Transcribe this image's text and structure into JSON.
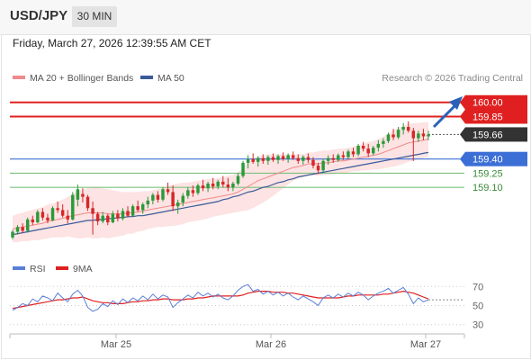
{
  "header": {
    "symbol": "USD/JPY",
    "timeframe": "30 MIN"
  },
  "timestamp": "Friday, March 27, 2026 12:39:55 AM CET",
  "legend": {
    "ma20_label": "MA 20 + Bollinger Bands",
    "ma50_label": "MA 50",
    "copyright": "Research © 2026 Trading Central"
  },
  "rsi_legend": {
    "rsi_label": "RSI",
    "ma_label": "9MA"
  },
  "colors": {
    "up": "#2a9a3a",
    "down": "#d62728",
    "ma20": "#f08a8a",
    "ma50": "#3a5a9a",
    "band_fill": "#fde3e3",
    "resistance": "#e02020",
    "pivot": "#3c6fd6",
    "support": "#7ec07e",
    "current": "#333333",
    "rsi": "#5b7fd6",
    "rsi_ma": "#e02020",
    "arrow": "#2b62b8"
  },
  "chart_data": {
    "type": "candlestick",
    "ylim": [
      158.53,
      160.15
    ],
    "x_ticks": [
      "Mar 25",
      "Mar 26",
      "Mar 27"
    ],
    "current_price": 159.66,
    "levels": [
      {
        "name": "resistance-2",
        "value": 160.0,
        "label": "160.00",
        "kind": "resistance"
      },
      {
        "name": "resistance-1",
        "value": 159.85,
        "label": "159.85",
        "kind": "resistance"
      },
      {
        "name": "pivot",
        "value": 159.4,
        "label": "159.40",
        "kind": "pivot"
      },
      {
        "name": "support-1",
        "value": 159.25,
        "label": "159.25",
        "kind": "support"
      },
      {
        "name": "support-2",
        "value": 159.1,
        "label": "159.10",
        "kind": "support"
      }
    ],
    "candles": [
      [
        158.57,
        158.65,
        158.55,
        158.63
      ],
      [
        158.63,
        158.7,
        158.6,
        158.68
      ],
      [
        158.68,
        158.72,
        158.62,
        158.64
      ],
      [
        158.64,
        158.78,
        158.62,
        158.76
      ],
      [
        158.76,
        158.8,
        158.7,
        158.73
      ],
      [
        158.73,
        158.86,
        158.72,
        158.84
      ],
      [
        158.84,
        158.88,
        158.75,
        158.78
      ],
      [
        158.78,
        158.82,
        158.72,
        158.75
      ],
      [
        158.75,
        158.9,
        158.74,
        158.88
      ],
      [
        158.88,
        158.95,
        158.83,
        158.86
      ],
      [
        158.86,
        158.92,
        158.78,
        158.8
      ],
      [
        158.8,
        158.86,
        158.72,
        158.76
      ],
      [
        158.76,
        159.05,
        158.75,
        159.02
      ],
      [
        158.97,
        159.13,
        158.9,
        159.08
      ],
      [
        159.03,
        159.09,
        158.94,
        159.0
      ],
      [
        159.0,
        159.02,
        158.85,
        158.88
      ],
      [
        158.88,
        158.95,
        158.6,
        158.82
      ],
      [
        158.82,
        158.84,
        158.7,
        158.74
      ],
      [
        158.74,
        158.84,
        158.72,
        158.8
      ],
      [
        158.8,
        158.82,
        158.7,
        158.73
      ],
      [
        158.73,
        158.85,
        158.72,
        158.82
      ],
      [
        158.82,
        158.86,
        158.74,
        158.77
      ],
      [
        158.77,
        158.88,
        158.75,
        158.85
      ],
      [
        158.85,
        158.9,
        158.78,
        158.8
      ],
      [
        158.8,
        158.92,
        158.79,
        158.9
      ],
      [
        158.9,
        158.96,
        158.84,
        158.86
      ],
      [
        158.86,
        158.94,
        158.82,
        158.92
      ],
      [
        158.92,
        159.0,
        158.88,
        158.96
      ],
      [
        158.96,
        159.04,
        158.92,
        159.02
      ],
      [
        159.02,
        159.06,
        158.94,
        158.97
      ],
      [
        158.97,
        159.1,
        158.95,
        159.08
      ],
      [
        159.08,
        159.15,
        159.02,
        159.05
      ],
      [
        159.05,
        159.12,
        158.85,
        158.9
      ],
      [
        158.9,
        158.97,
        158.82,
        158.94
      ],
      [
        158.94,
        159.04,
        158.9,
        159.01
      ],
      [
        159.01,
        159.1,
        158.98,
        159.07
      ],
      [
        159.07,
        159.12,
        159.0,
        159.04
      ],
      [
        159.04,
        159.14,
        159.02,
        159.12
      ],
      [
        159.12,
        159.18,
        159.06,
        159.09
      ],
      [
        159.09,
        159.16,
        159.05,
        159.14
      ],
      [
        159.14,
        159.2,
        159.08,
        159.11
      ],
      [
        159.11,
        159.18,
        159.08,
        159.16
      ],
      [
        159.16,
        159.22,
        159.1,
        159.13
      ],
      [
        159.13,
        159.2,
        159.06,
        159.1
      ],
      [
        159.1,
        159.16,
        159.06,
        159.14
      ],
      [
        159.14,
        159.25,
        159.12,
        159.22
      ],
      [
        159.22,
        159.38,
        159.2,
        159.36
      ],
      [
        159.36,
        159.44,
        159.3,
        159.4
      ],
      [
        159.4,
        159.46,
        159.35,
        159.37
      ],
      [
        159.37,
        159.43,
        159.32,
        159.41
      ],
      [
        159.41,
        159.45,
        159.35,
        159.38
      ],
      [
        159.38,
        159.44,
        159.34,
        159.42
      ],
      [
        159.42,
        159.46,
        159.37,
        159.39
      ],
      [
        159.39,
        159.45,
        159.35,
        159.43
      ],
      [
        159.43,
        159.47,
        159.38,
        159.4
      ],
      [
        159.4,
        159.46,
        159.36,
        159.44
      ],
      [
        159.44,
        159.48,
        159.39,
        159.41
      ],
      [
        159.41,
        159.45,
        159.35,
        159.38
      ],
      [
        159.38,
        159.44,
        159.34,
        159.42
      ],
      [
        159.42,
        159.46,
        159.36,
        159.39
      ],
      [
        159.39,
        159.42,
        159.3,
        159.33
      ],
      [
        159.33,
        159.36,
        159.24,
        159.28
      ],
      [
        159.28,
        159.4,
        159.26,
        159.38
      ],
      [
        159.38,
        159.44,
        159.34,
        159.41
      ],
      [
        159.41,
        159.45,
        159.36,
        159.39
      ],
      [
        159.39,
        159.46,
        159.37,
        159.44
      ],
      [
        159.44,
        159.48,
        159.39,
        159.42
      ],
      [
        159.42,
        159.5,
        159.4,
        159.48
      ],
      [
        159.48,
        159.52,
        159.42,
        159.45
      ],
      [
        159.45,
        159.56,
        159.43,
        159.54
      ],
      [
        159.54,
        159.58,
        159.48,
        159.51
      ],
      [
        159.51,
        159.56,
        159.42,
        159.46
      ],
      [
        159.46,
        159.54,
        159.44,
        159.52
      ],
      [
        159.52,
        159.6,
        159.48,
        159.56
      ],
      [
        159.56,
        159.62,
        159.52,
        159.59
      ],
      [
        159.59,
        159.68,
        159.57,
        159.66
      ],
      [
        159.66,
        159.72,
        159.6,
        159.63
      ],
      [
        159.63,
        159.74,
        159.61,
        159.71
      ],
      [
        159.71,
        159.78,
        159.66,
        159.74
      ],
      [
        159.74,
        159.8,
        159.68,
        159.7
      ],
      [
        159.7,
        159.73,
        159.38,
        159.62
      ],
      [
        159.62,
        159.7,
        159.58,
        159.67
      ],
      [
        159.67,
        159.72,
        159.6,
        159.64
      ],
      [
        159.64,
        159.7,
        159.6,
        159.66
      ]
    ],
    "ma20": [
      158.66,
      158.67,
      158.68,
      158.69,
      158.7,
      158.71,
      158.72,
      158.74,
      158.75,
      158.76,
      158.77,
      158.79,
      158.8,
      158.81,
      158.82,
      158.83,
      158.83,
      158.83,
      158.83,
      158.82,
      158.82,
      158.82,
      158.82,
      158.83,
      158.83,
      158.84,
      158.85,
      158.86,
      158.87,
      158.88,
      158.89,
      158.9,
      158.91,
      158.92,
      158.93,
      158.94,
      158.95,
      158.96,
      158.97,
      158.98,
      158.99,
      159.0,
      159.01,
      159.02,
      159.03,
      159.05,
      159.08,
      159.11,
      159.14,
      159.17,
      159.19,
      159.21,
      159.23,
      159.25,
      159.27,
      159.29,
      159.31,
      159.32,
      159.33,
      159.35,
      159.35,
      159.35,
      159.36,
      159.36,
      159.37,
      159.38,
      159.38,
      159.39,
      159.4,
      159.41,
      159.42,
      159.43,
      159.44,
      159.45,
      159.47,
      159.49,
      159.51,
      159.53,
      159.55,
      159.57,
      159.58,
      159.59,
      159.6,
      159.61
    ],
    "ma50": [
      158.6,
      158.61,
      158.62,
      158.63,
      158.64,
      158.65,
      158.66,
      158.67,
      158.68,
      158.69,
      158.7,
      158.71,
      158.72,
      158.73,
      158.74,
      158.75,
      158.75,
      158.76,
      158.76,
      158.77,
      158.77,
      158.78,
      158.78,
      158.79,
      158.79,
      158.8,
      158.8,
      158.81,
      158.82,
      158.83,
      158.84,
      158.85,
      158.86,
      158.87,
      158.88,
      158.89,
      158.9,
      158.91,
      158.92,
      158.93,
      158.94,
      158.95,
      158.97,
      158.98,
      159.0,
      159.01,
      159.03,
      159.05,
      159.06,
      159.08,
      159.1,
      159.11,
      159.13,
      159.15,
      159.16,
      159.18,
      159.19,
      159.21,
      159.22,
      159.23,
      159.24,
      159.25,
      159.26,
      159.27,
      159.28,
      159.29,
      159.3,
      159.31,
      159.32,
      159.33,
      159.34,
      159.35,
      159.36,
      159.37,
      159.38,
      159.39,
      159.4,
      159.41,
      159.42,
      159.43,
      159.44,
      159.45,
      159.46,
      159.47
    ],
    "band_width": [
      0.14,
      0.15,
      0.15,
      0.16,
      0.16,
      0.17,
      0.17,
      0.18,
      0.18,
      0.19,
      0.2,
      0.21,
      0.23,
      0.25,
      0.26,
      0.26,
      0.27,
      0.27,
      0.26,
      0.26,
      0.25,
      0.24,
      0.23,
      0.22,
      0.22,
      0.21,
      0.21,
      0.2,
      0.2,
      0.2,
      0.21,
      0.21,
      0.22,
      0.22,
      0.22,
      0.21,
      0.21,
      0.21,
      0.21,
      0.21,
      0.2,
      0.2,
      0.2,
      0.2,
      0.2,
      0.21,
      0.23,
      0.25,
      0.26,
      0.26,
      0.25,
      0.24,
      0.22,
      0.2,
      0.18,
      0.16,
      0.14,
      0.13,
      0.12,
      0.12,
      0.12,
      0.13,
      0.13,
      0.13,
      0.13,
      0.13,
      0.13,
      0.13,
      0.13,
      0.14,
      0.14,
      0.15,
      0.15,
      0.16,
      0.17,
      0.18,
      0.19,
      0.2,
      0.2,
      0.2,
      0.2,
      0.19,
      0.19,
      0.18
    ],
    "rsi": {
      "ylim": [
        25,
        75
      ],
      "ticks": [
        30,
        50,
        70
      ],
      "values": [
        45,
        48,
        52,
        50,
        57,
        54,
        60,
        58,
        55,
        63,
        58,
        54,
        62,
        66,
        60,
        48,
        44,
        46,
        52,
        49,
        55,
        51,
        57,
        53,
        58,
        55,
        60,
        56,
        62,
        57,
        61,
        59,
        48,
        53,
        57,
        61,
        58,
        64,
        60,
        63,
        59,
        62,
        58,
        56,
        60,
        66,
        70,
        72,
        65,
        67,
        62,
        65,
        61,
        64,
        60,
        63,
        59,
        56,
        60,
        57,
        54,
        50,
        58,
        61,
        58,
        62,
        59,
        63,
        60,
        64,
        61,
        56,
        60,
        63,
        65,
        68,
        63,
        66,
        69,
        62,
        52,
        58,
        54,
        56
      ],
      "ma9": [
        47,
        48,
        49,
        50,
        51,
        52,
        53,
        54,
        55,
        56,
        56,
        57,
        58,
        58,
        59,
        57,
        55,
        54,
        53,
        53,
        52,
        52,
        52,
        53,
        54,
        54,
        55,
        55,
        56,
        56,
        57,
        57,
        56,
        56,
        56,
        57,
        57,
        58,
        58,
        59,
        60,
        60,
        60,
        60,
        60,
        60,
        61,
        63,
        64,
        65,
        65,
        65,
        64,
        64,
        64,
        63,
        63,
        62,
        61,
        60,
        59,
        58,
        58,
        58,
        58,
        58,
        59,
        60,
        60,
        61,
        61,
        61,
        61,
        61,
        62,
        62,
        63,
        64,
        65,
        64,
        63,
        61,
        59,
        57
      ]
    }
  }
}
